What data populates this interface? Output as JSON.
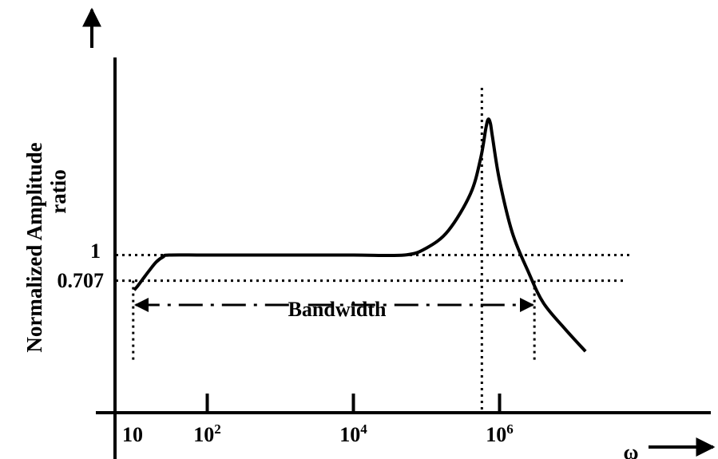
{
  "chart_data": {
    "type": "line",
    "ylabel_line1": "Normalized Amplitude",
    "ylabel_line2": "ratio",
    "xlabel": "ω",
    "x_scale": "log",
    "x_ticks": [
      {
        "value": 10,
        "base": "10",
        "exp": ""
      },
      {
        "value": 100,
        "base": "10",
        "exp": "2"
      },
      {
        "value": 10000,
        "base": "10",
        "exp": "4"
      },
      {
        "value": 1000000,
        "base": "10",
        "exp": "6"
      }
    ],
    "y_ticks": [
      {
        "value": 1,
        "label": "1"
      },
      {
        "value": 0.707,
        "label": "0.707"
      }
    ],
    "annotation": "Bandwidth",
    "series": [
      {
        "x": [
          10,
          11,
          13,
          16,
          20,
          25,
          30,
          100,
          1000,
          10000,
          50000,
          100000,
          200000,
          400000,
          550000,
          650000,
          700000,
          750000,
          800000,
          1000000,
          1500000,
          2500000,
          4000000,
          8000000,
          15000000
        ],
        "y": [
          0.6,
          0.64,
          0.72,
          0.82,
          0.92,
          0.98,
          1.0,
          1.0,
          1.0,
          1.0,
          1.0,
          1.08,
          1.28,
          1.7,
          2.1,
          2.45,
          2.55,
          2.5,
          2.35,
          1.85,
          1.25,
          0.8,
          0.45,
          0.15,
          -0.1
        ]
      }
    ],
    "bandwidth_range": [
      11,
      3000000
    ],
    "peak_x": 700000,
    "ylim": [
      -0.8,
      3.0
    ]
  }
}
